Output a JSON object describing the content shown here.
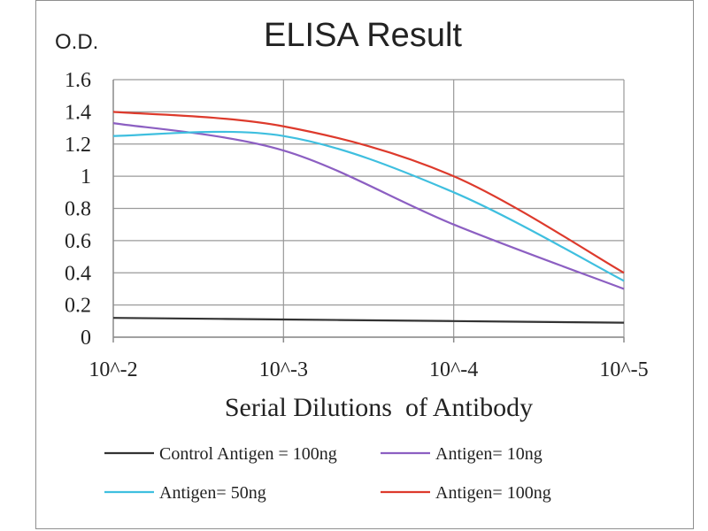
{
  "chart_data": {
    "type": "line",
    "title": "ELISA Result",
    "ylabel": "O.D.",
    "xlabel": "Serial Dilutions  of Antibody",
    "x": [
      "10^-2",
      "10^-3",
      "10^-4",
      "10^-5"
    ],
    "ylim": [
      0,
      1.6
    ],
    "yticks": [
      "0",
      "0.2",
      "0.4",
      "0.6",
      "0.8",
      "1",
      "1.2",
      "1.4",
      "1.6"
    ],
    "grid": true,
    "legend_position": "bottom",
    "series": [
      {
        "name": "Control Antigen = 100ng",
        "color": "#333333",
        "values": [
          0.12,
          0.11,
          0.1,
          0.09
        ]
      },
      {
        "name": "Antigen= 10ng",
        "color": "#8c5fc2",
        "values": [
          1.33,
          1.16,
          0.7,
          0.3
        ]
      },
      {
        "name": "Antigen= 50ng",
        "color": "#3fbfdf",
        "values": [
          1.25,
          1.25,
          0.9,
          0.35
        ]
      },
      {
        "name": "Antigen= 100ng",
        "color": "#dd3a2c",
        "values": [
          1.4,
          1.31,
          1.0,
          0.4
        ]
      }
    ]
  }
}
